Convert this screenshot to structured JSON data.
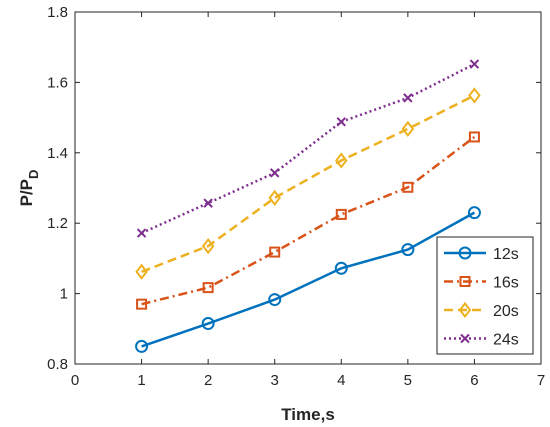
{
  "chart_data": {
    "type": "line",
    "xlabel": "Time,s",
    "ylabel": "P/P",
    "ylabel_subscript": "D",
    "xlim": [
      0,
      7
    ],
    "ylim": [
      0.8,
      1.8
    ],
    "xticks": [
      "0",
      "1",
      "2",
      "3",
      "4",
      "5",
      "6",
      "7"
    ],
    "yticks": [
      "0.8",
      "1",
      "1.2",
      "1.4",
      "1.6",
      "1.8"
    ],
    "grid": false,
    "legend_position": "bottom-right",
    "x": [
      1,
      2,
      3,
      4,
      5,
      6
    ],
    "series": [
      {
        "name": "12s",
        "values": [
          0.85,
          0.915,
          0.983,
          1.072,
          1.125,
          1.23
        ],
        "color": "#0072BD",
        "dash": "solid",
        "marker": "circle"
      },
      {
        "name": "16s",
        "values": [
          0.97,
          1.017,
          1.118,
          1.225,
          1.302,
          1.445
        ],
        "color": "#D95319",
        "dash": "dashdot",
        "marker": "square"
      },
      {
        "name": "20s",
        "values": [
          1.062,
          1.135,
          1.272,
          1.378,
          1.468,
          1.563
        ],
        "color": "#EDB120",
        "dash": "dashed",
        "marker": "diamond"
      },
      {
        "name": "24s",
        "values": [
          1.172,
          1.257,
          1.343,
          1.488,
          1.556,
          1.652
        ],
        "color": "#7E2F8E",
        "dash": "dotted",
        "marker": "x"
      }
    ]
  }
}
